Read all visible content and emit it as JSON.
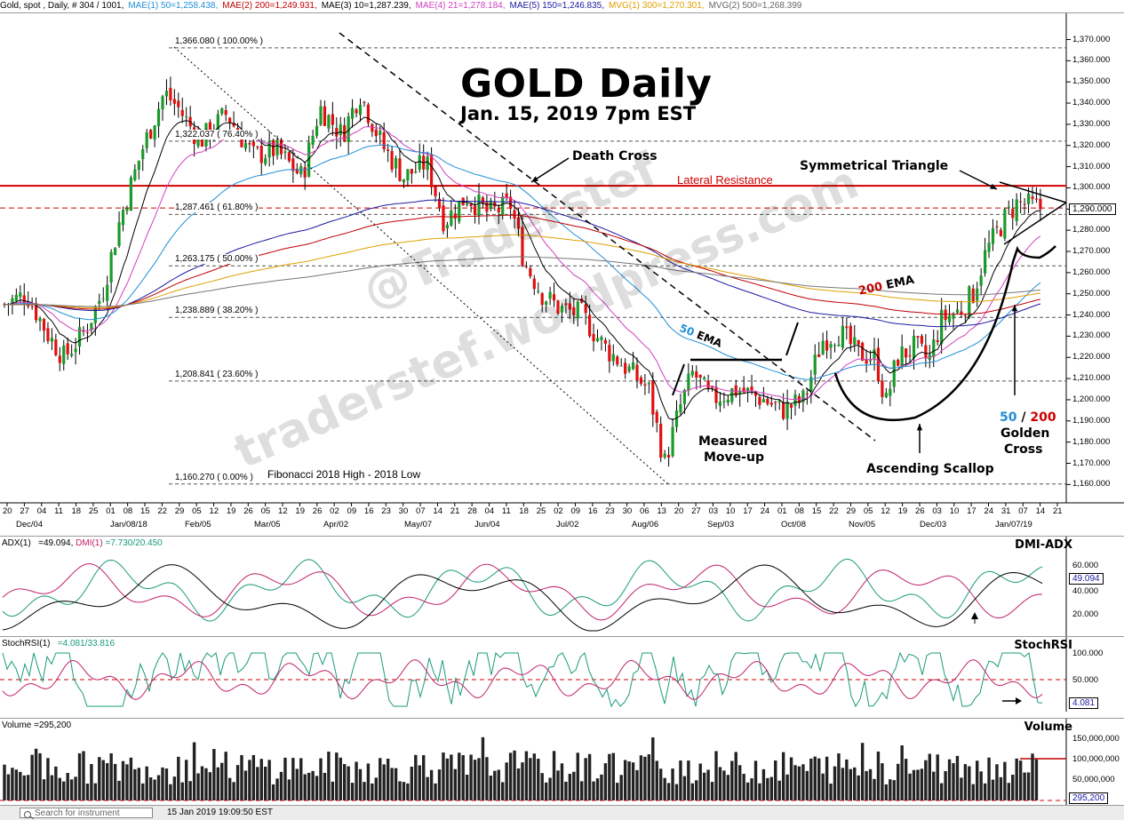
{
  "header": {
    "symbol": "Gold, spot , Daily, # 304 / 1001,",
    "indicators": [
      {
        "text": "MAE(1) 50=1,258.438,",
        "color": "#1f8fd6"
      },
      {
        "text": "MAE(2) 200=1,249.931,",
        "color": "#c00000"
      },
      {
        "text": "MAE(3) 10=1,287.239,",
        "color": "#000000"
      },
      {
        "text": "MAE(4) 21=1,278.184,",
        "color": "#d040c0"
      },
      {
        "text": "MAE(5) 150=1,246.835,",
        "color": "#1a1aa0"
      },
      {
        "text": "MVG(1) 300=1,270.301,",
        "color": "#e0a000"
      },
      {
        "text": "MVG(2) 500=1,268.399",
        "color": "#666666"
      }
    ]
  },
  "main": {
    "title": "GOLD Daily",
    "subtitle": "Jan. 15, 2019 7pm EST",
    "watermark1": "@Traderstef",
    "watermark2": "traderstef.wordpress.com",
    "annotations": {
      "death_cross": "Death Cross",
      "symmetrical_triangle": "Symmetrical Triangle",
      "lateral_resistance": "Lateral Resistance",
      "ema200": "200 EMA",
      "ema50": "50 EMA",
      "measured_1": "Measured",
      "measured_2": "Move-up",
      "ascending_scallop": "Ascending Scallop",
      "golden_50": "50",
      "golden_slash": " / ",
      "golden_200": "200",
      "golden_1": "Golden",
      "golden_2": "Cross"
    },
    "fib_levels": [
      {
        "label": "1,366.080 ( 100.00% )",
        "value": 1366.08
      },
      {
        "label": "1,322.037 ( 76.40% )",
        "value": 1322.037
      },
      {
        "label": "1,287.461 ( 61.80% )",
        "value": 1287.461
      },
      {
        "label": "1,263.175 ( 50.00% )",
        "value": 1263.175
      },
      {
        "label": "1,238.889 ( 38.20% )",
        "value": 1238.889
      },
      {
        "label": "1,208.841 ( 23.60% )",
        "value": 1208.841
      },
      {
        "label": "1,160.270 ( 0.00% )",
        "value": 1160.27
      }
    ],
    "fib_caption": "Fibonacci 2018 High - 2018 Low",
    "y_labels": [
      "1,370.000",
      "1,360.000",
      "1,350.000",
      "1,340.000",
      "1,330.000",
      "1,320.000",
      "1,310.000",
      "1,300.000",
      "1,290.000",
      "1,280.000",
      "1,270.000",
      "1,260.000",
      "1,250.000",
      "1,240.000",
      "1,230.000",
      "1,220.000",
      "1,210.000",
      "1,200.000",
      "1,190.000",
      "1,180.000",
      "1,170.000",
      "1,160.000"
    ],
    "last_price": "1,290.000",
    "x_days": [
      "20",
      "27",
      "04",
      "11",
      "18",
      "25",
      "01",
      "08",
      "15",
      "22",
      "29",
      "05",
      "12",
      "19",
      "26",
      "05",
      "12",
      "19",
      "26",
      "02",
      "09",
      "16",
      "23",
      "30",
      "07",
      "14",
      "21",
      "28",
      "04",
      "11",
      "18",
      "25",
      "02",
      "09",
      "16",
      "23",
      "30",
      "06",
      "13",
      "20",
      "27",
      "03",
      "10",
      "17",
      "24",
      "01",
      "08",
      "15",
      "22",
      "29",
      "05",
      "12",
      "19",
      "26",
      "03",
      "10",
      "17",
      "24",
      "31",
      "07",
      "14",
      "21"
    ],
    "x_months": [
      "Dec/04",
      "Jan/08/18",
      "Feb/05",
      "Mar/05",
      "Apr/02",
      "May/07",
      "Jun/04",
      "Jul/02",
      "Aug/06",
      "Sep/03",
      "Oct/08",
      "Nov/05",
      "Dec/03",
      "Jan/07/19"
    ]
  },
  "dmi": {
    "title_prefix": "ADX(1)",
    "adx_value": "=49.094,",
    "dmi_label": "DMI(1)",
    "dmi_values": "=7.730/20.450",
    "name": "DMI-ADX",
    "y_labels": [
      "60.000",
      "40.000",
      "20.000"
    ],
    "last": "49.094",
    "colors": {
      "adx": "#000000",
      "plus": "#1a9a7a",
      "minus": "#c0206a"
    }
  },
  "stoch": {
    "title_prefix": "StochRSI(1)",
    "values": "=4.081/33.816",
    "name": "StochRSI",
    "y_labels": [
      "100.000",
      "50.000"
    ],
    "last": "4.081"
  },
  "volume": {
    "title": "Volume =295,200",
    "name": "Volume",
    "y_labels": [
      "150,000,000",
      "100,000,000",
      "50,000,000"
    ],
    "last": "295,200"
  },
  "status": {
    "search_placeholder": "Search for instrument",
    "timestamp": "15 Jan 2019 19:09:50 EST"
  }
}
